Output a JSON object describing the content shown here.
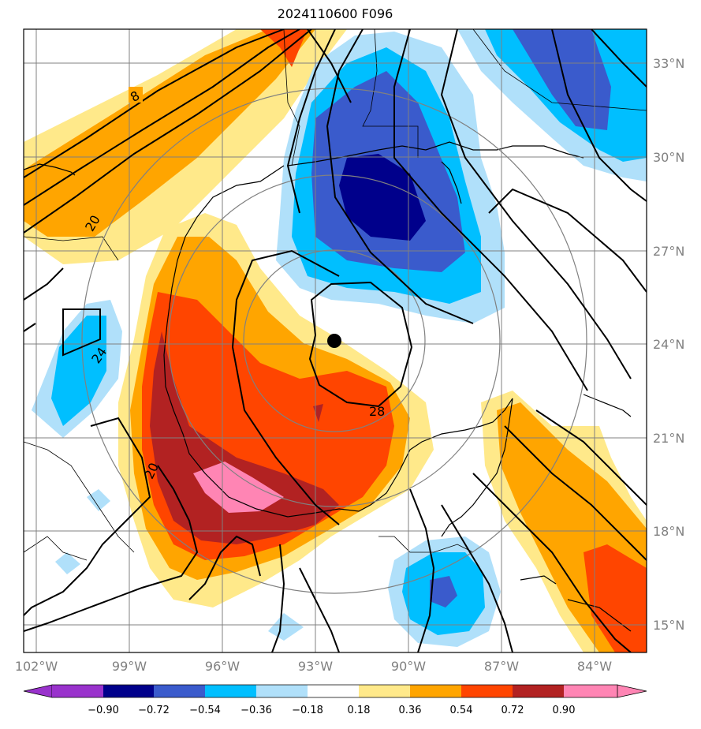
{
  "title": "2024110600 F096",
  "map": {
    "lon_labels": [
      "102°W",
      "99°W",
      "96°W",
      "93°W",
      "90°W",
      "87°W",
      "84°W"
    ],
    "lat_labels": [
      "33°N",
      "30°N",
      "27°N",
      "24°N",
      "21°N",
      "18°N",
      "15°N"
    ],
    "contour_labels": [
      "8",
      "20",
      "24",
      "20",
      "28"
    ],
    "storm_center": "hurricane-center-marker"
  },
  "colorbar": {
    "labels": [
      "−0.90",
      "−0.72",
      "−0.54",
      "−0.36",
      "−0.18",
      "0.18",
      "0.36",
      "0.54",
      "0.72",
      "0.90"
    ],
    "colors": [
      "#9932cc",
      "#00008b",
      "#3a5bcc",
      "#00bfff",
      "#b0e0fa",
      "#ffffff",
      "#ffe98a",
      "#ffa500",
      "#ff4500",
      "#b22222",
      "#ff85b4"
    ]
  },
  "palette": {
    "deep_blue": "#00008b",
    "blue": "#3a5bcc",
    "cyan": "#00bfff",
    "light_blue": "#b0e0fa",
    "yellow": "#ffe98a",
    "orange": "#ffa500",
    "red_orange": "#ff4500",
    "dark_red": "#b22222",
    "pink": "#ff85b4"
  }
}
